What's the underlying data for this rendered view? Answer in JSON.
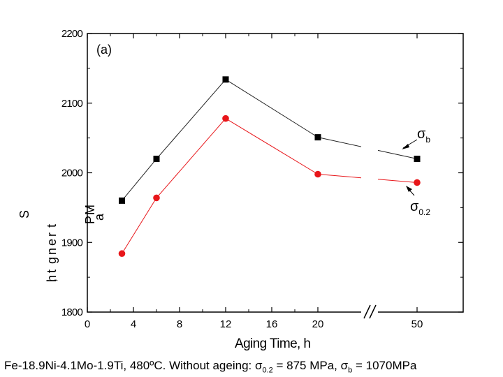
{
  "chart_data": {
    "type": "line",
    "panel_label": "(a)",
    "xlabel": "Aging Time,  h",
    "ylabel": "Strength, MPa",
    "ylabel_chars": [
      "S",
      "t",
      "r",
      "e",
      "n",
      "g",
      "t",
      "h",
      ",",
      "M",
      "P",
      "a"
    ],
    "ylim": [
      1800,
      2200
    ],
    "yticks": [
      "1800",
      "1900",
      "2000",
      "2100",
      "2200"
    ],
    "xticks": [
      "0",
      "4",
      "8",
      "12",
      "16",
      "20",
      "50"
    ],
    "x_break": "//",
    "x": [
      3,
      6,
      12,
      20,
      50
    ],
    "series": [
      {
        "name": "σb",
        "label_main": "σ",
        "label_sub": "b",
        "marker": "square",
        "color": "#000000",
        "line_color": "#222222",
        "values": [
          1960,
          2020,
          2134,
          2051,
          2020
        ]
      },
      {
        "name": "σ0.2",
        "label_main": "σ",
        "label_sub": "0.2",
        "marker": "circle",
        "color": "#e8161a",
        "line_color": "#e8161a",
        "values": [
          1884,
          1964,
          2078,
          1998,
          1986
        ]
      }
    ]
  },
  "caption": {
    "prefix": "Fe-18.9Ni-4.1Mo-1.9Ti, 480ºC. Without ageing: σ",
    "sub1": "0.2",
    "middle": " = 875 MPa, σ",
    "sub2": "b",
    "suffix": " = 1070MPa"
  }
}
